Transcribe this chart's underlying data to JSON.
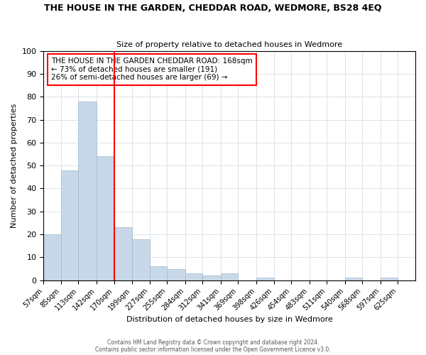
{
  "title": "THE HOUSE IN THE GARDEN, CHEDDAR ROAD, WEDMORE, BS28 4EQ",
  "subtitle": "Size of property relative to detached houses in Wedmore",
  "xlabel": "Distribution of detached houses by size in Wedmore",
  "ylabel": "Number of detached properties",
  "bar_values": [
    20,
    48,
    78,
    54,
    23,
    18,
    6,
    5,
    3,
    2,
    3,
    0,
    1,
    0,
    0,
    0,
    0,
    1,
    0,
    1
  ],
  "bar_labels": [
    "57sqm",
    "85sqm",
    "113sqm",
    "142sqm",
    "170sqm",
    "199sqm",
    "227sqm",
    "255sqm",
    "284sqm",
    "312sqm",
    "341sqm",
    "369sqm",
    "398sqm",
    "426sqm",
    "454sqm",
    "483sqm",
    "511sqm",
    "540sqm",
    "568sqm",
    "597sqm",
    "625sqm"
  ],
  "bin_edges": [
    57,
    85,
    113,
    142,
    170,
    199,
    227,
    255,
    284,
    312,
    341,
    369,
    398,
    426,
    454,
    483,
    511,
    540,
    568,
    597,
    625
  ],
  "bar_color": "#c8d8e8",
  "bar_edge_color": "#a0b8cc",
  "vline_x": 170,
  "vline_color": "red",
  "annotation_title": "THE HOUSE IN THE GARDEN CHEDDAR ROAD: 168sqm",
  "annotation_line1": "← 73% of detached houses are smaller (191)",
  "annotation_line2": "26% of semi-detached houses are larger (69) →",
  "annotation_box_color": "#ffffff",
  "annotation_box_edge": "red",
  "ylim": [
    0,
    100
  ],
  "yticks": [
    0,
    10,
    20,
    30,
    40,
    50,
    60,
    70,
    80,
    90,
    100
  ],
  "footer1": "Contains HM Land Registry data © Crown copyright and database right 2024.",
  "footer2": "Contains public sector information licensed under the Open Government Licence v3.0.",
  "background_color": "#ffffff",
  "grid_color": "#d0d8e0"
}
